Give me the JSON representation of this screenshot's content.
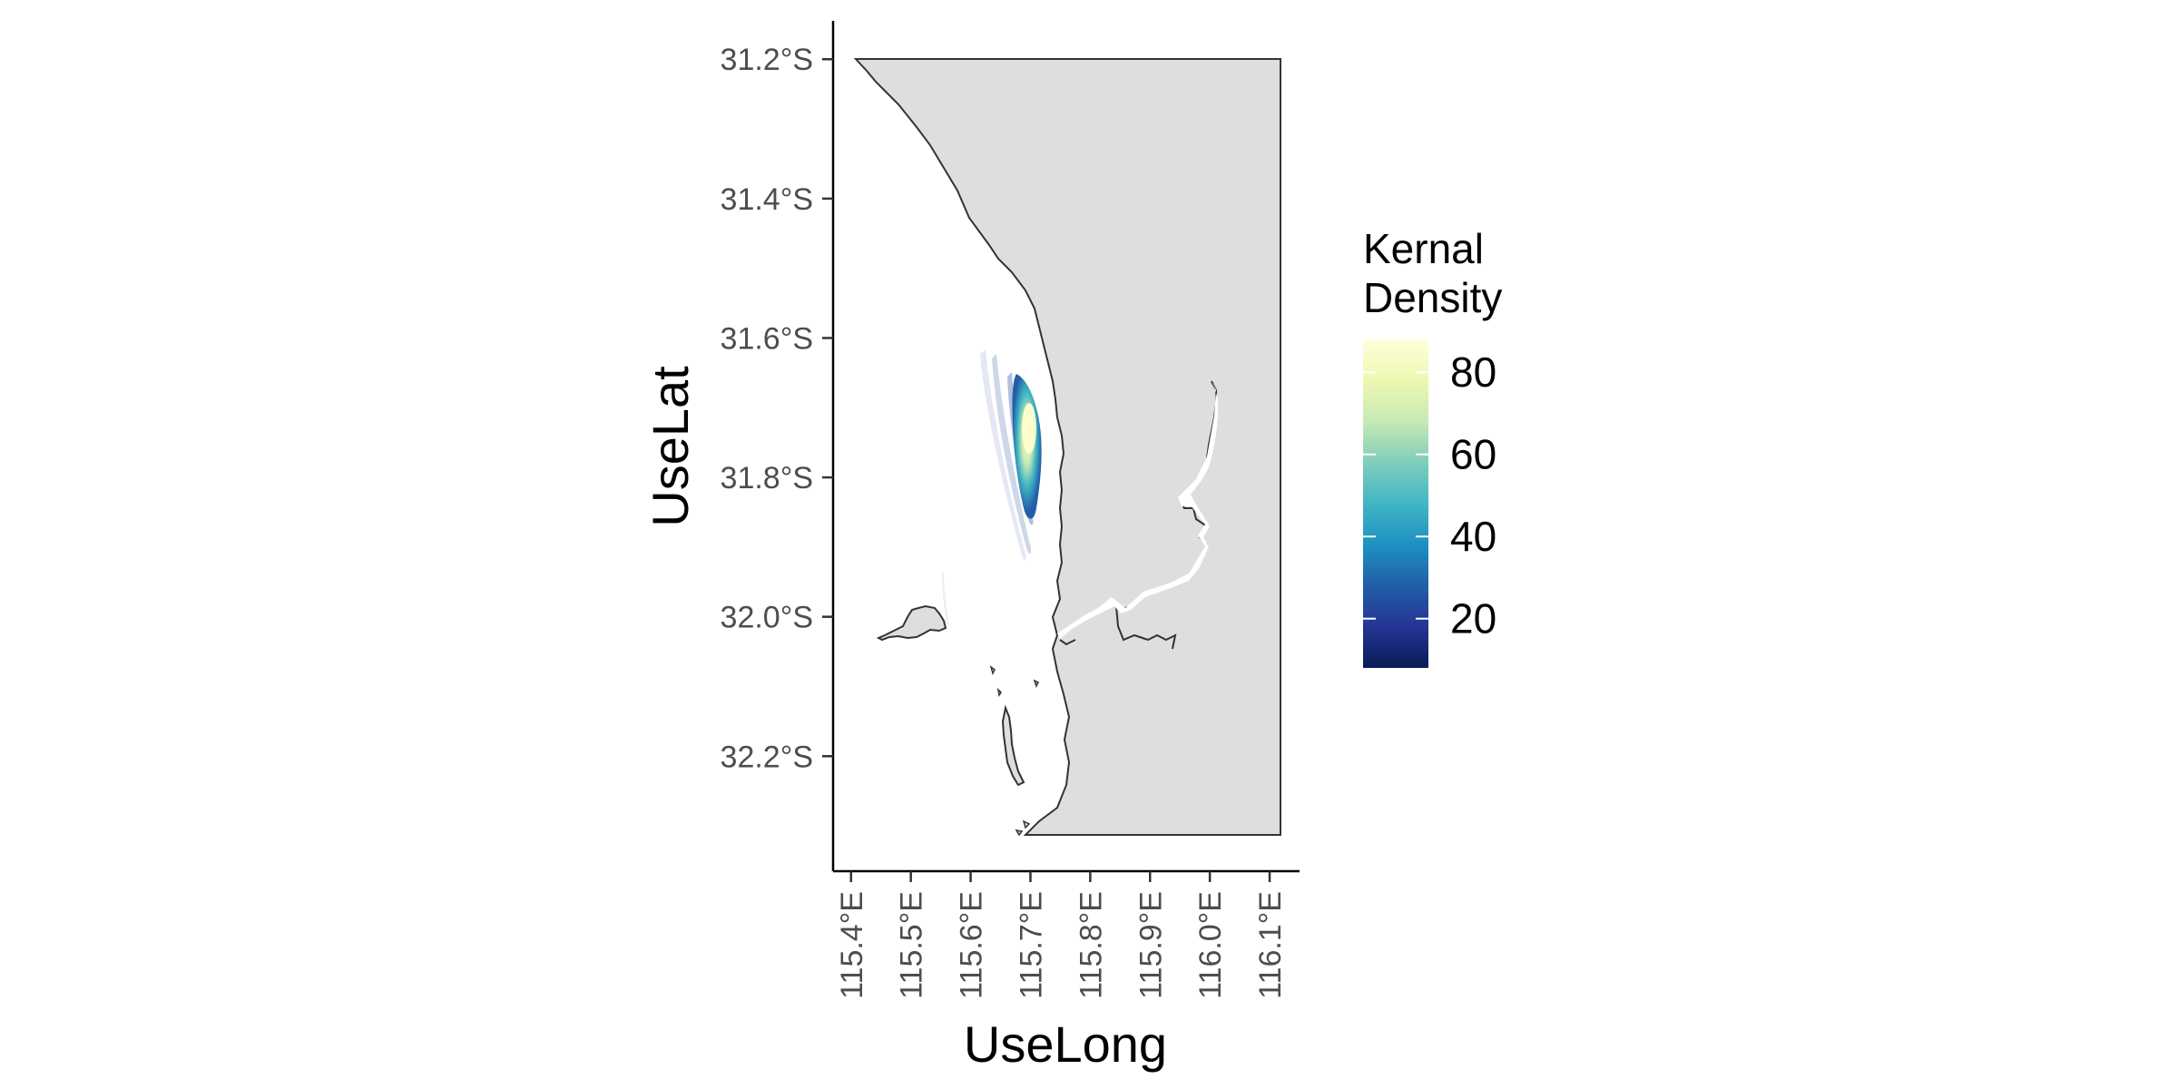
{
  "chart_data": {
    "type": "map",
    "xlabel": "UseLong",
    "ylabel": "UseLat",
    "x_ticks": [
      "115.4°E",
      "115.5°E",
      "115.6°E",
      "115.7°E",
      "115.8°E",
      "115.9°E",
      "116.0°E",
      "116.1°E"
    ],
    "x_tick_values": [
      115.4,
      115.5,
      115.6,
      115.7,
      115.8,
      115.9,
      116.0,
      116.1
    ],
    "y_ticks": [
      "31.2°S",
      "31.4°S",
      "31.6°S",
      "31.8°S",
      "32.0°S",
      "32.2°S"
    ],
    "y_tick_values": [
      -31.2,
      -31.4,
      -31.6,
      -31.8,
      -32.0,
      -32.2
    ],
    "xlim": [
      115.37,
      116.15
    ],
    "ylim": [
      -32.365,
      -31.145
    ],
    "land_color": "#dedede",
    "coast_color": "#333333",
    "grid": false,
    "legend": {
      "title_lines": [
        "Kernal",
        "Density"
      ],
      "labels": [
        "80",
        "60",
        "40",
        "20"
      ],
      "values": [
        80,
        60,
        40,
        20
      ],
      "range": [
        8,
        88
      ],
      "position": "right",
      "colors": [
        "#081d58",
        "#253494",
        "#225ea8",
        "#1d91c0",
        "#41b6c4",
        "#7fcdbb",
        "#c7e9b4",
        "#edf8b1",
        "#ffffd9"
      ]
    },
    "density_peak": {
      "lon": 115.695,
      "lat": -31.74,
      "value": 88
    }
  }
}
